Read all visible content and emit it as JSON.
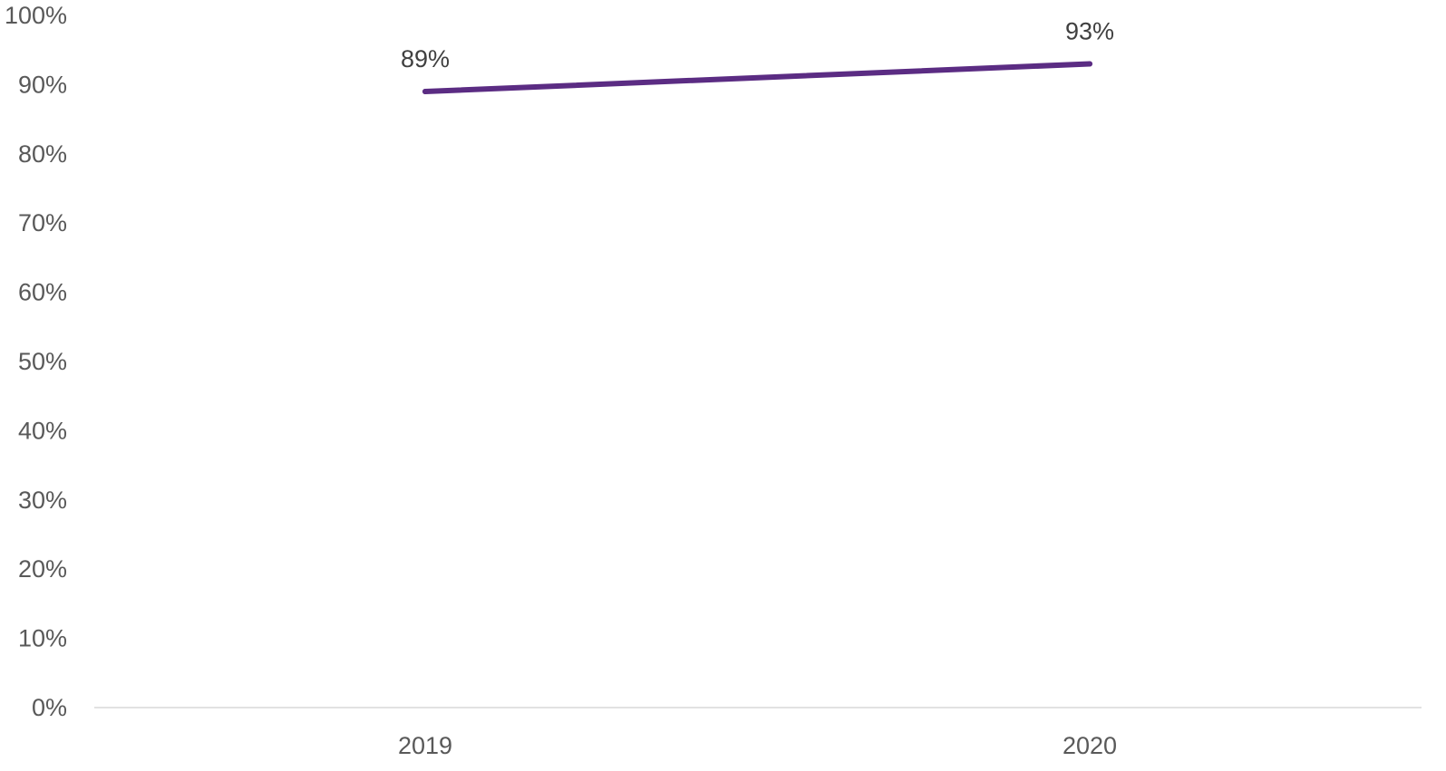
{
  "chart_data": {
    "type": "line",
    "title": "",
    "xlabel": "",
    "ylabel": "",
    "categories": [
      "2019",
      "2020"
    ],
    "series": [
      {
        "values": [
          89,
          93
        ],
        "data_labels": [
          "89%",
          "93%"
        ],
        "color": "#5b2c83"
      }
    ],
    "ylim": [
      0,
      100
    ],
    "y_ticks": [
      0,
      10,
      20,
      30,
      40,
      50,
      60,
      70,
      80,
      90,
      100
    ],
    "y_tick_labels": [
      "0%",
      "10%",
      "20%",
      "30%",
      "40%",
      "50%",
      "60%",
      "70%",
      "80%",
      "90%",
      "100%"
    ],
    "grid": false,
    "legend": "none",
    "axis_color": "#d9d9d9"
  }
}
